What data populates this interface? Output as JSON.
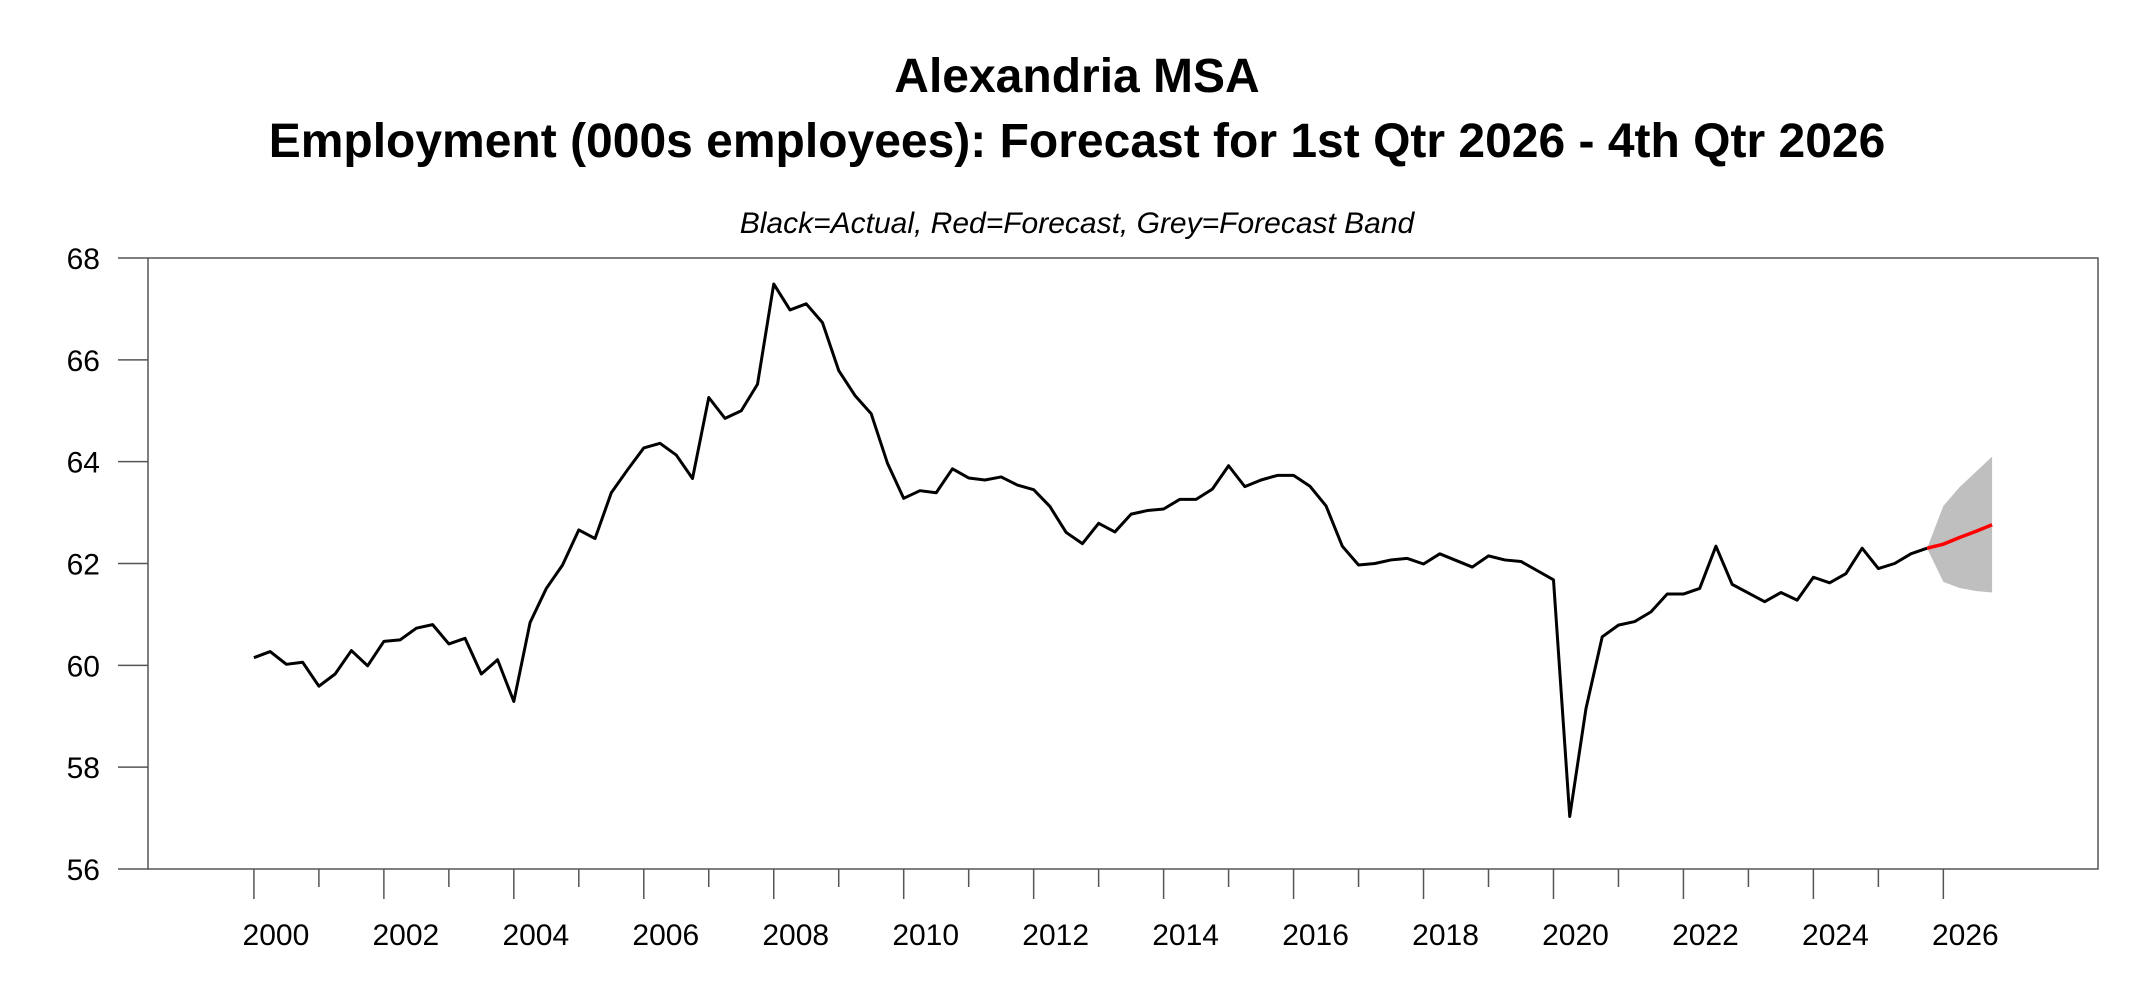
{
  "chart_data": {
    "type": "line",
    "title": "Alexandria MSA",
    "subtitle": "Employment (000s employees): Forecast for 1st Qtr 2026 - 4th Qtr 2026",
    "note": "Black=Actual, Red=Forecast, Grey=Forecast Band",
    "xlabel": "",
    "ylabel": "",
    "xlim": [
      1998.37,
      2028.38
    ],
    "ylim": [
      56,
      68
    ],
    "xticks": [
      "2000",
      "2002",
      "2004",
      "2006",
      "2008",
      "2010",
      "2012",
      "2014",
      "2016",
      "2018",
      "2020",
      "2022",
      "2024",
      "2026"
    ],
    "yticks": [
      "56",
      "58",
      "60",
      "62",
      "64",
      "66",
      "68"
    ],
    "grid": false,
    "colors": {
      "actual": "#000000",
      "forecast": "#ff0000",
      "band": "#bfbfbf"
    },
    "actual": {
      "start": "2000 Q1",
      "frequency": "quarterly",
      "values": [
        60.15,
        60.27,
        60.02,
        60.06,
        59.59,
        59.83,
        60.29,
        59.99,
        60.47,
        60.5,
        60.73,
        60.8,
        60.42,
        60.53,
        59.83,
        60.11,
        59.29,
        60.84,
        61.51,
        61.97,
        62.66,
        62.49,
        63.39,
        63.84,
        64.27,
        64.36,
        64.13,
        63.67,
        65.26,
        64.85,
        65.0,
        65.52,
        67.49,
        66.98,
        67.1,
        66.73,
        65.79,
        65.3,
        64.94,
        63.97,
        63.28,
        63.43,
        63.39,
        63.86,
        63.68,
        63.64,
        63.7,
        63.54,
        63.45,
        63.12,
        62.61,
        62.39,
        62.79,
        62.62,
        62.97,
        63.04,
        63.07,
        63.26,
        63.26,
        63.46,
        63.92,
        63.51,
        63.64,
        63.73,
        63.73,
        63.52,
        63.13,
        62.34,
        61.97,
        62.0,
        62.07,
        62.1,
        61.99,
        62.19,
        62.06,
        61.93,
        62.15,
        62.07,
        62.04,
        61.86,
        61.68,
        57.03,
        59.15,
        60.56,
        60.79,
        60.86,
        61.05,
        61.4,
        61.4,
        61.51,
        62.34,
        61.59,
        61.42,
        61.25,
        61.43,
        61.28,
        61.73,
        61.62,
        61.8,
        62.3,
        61.9,
        62.0,
        62.19,
        62.3
      ]
    },
    "forecast": {
      "quarters": [
        "2026 Q1",
        "2026 Q2",
        "2026 Q3",
        "2026 Q4"
      ],
      "values": [
        62.38,
        62.51,
        62.63,
        62.76
      ],
      "band_upper": [
        63.13,
        63.5,
        63.8,
        64.1
      ],
      "band_lower": [
        61.64,
        61.52,
        61.46,
        61.43
      ]
    }
  }
}
